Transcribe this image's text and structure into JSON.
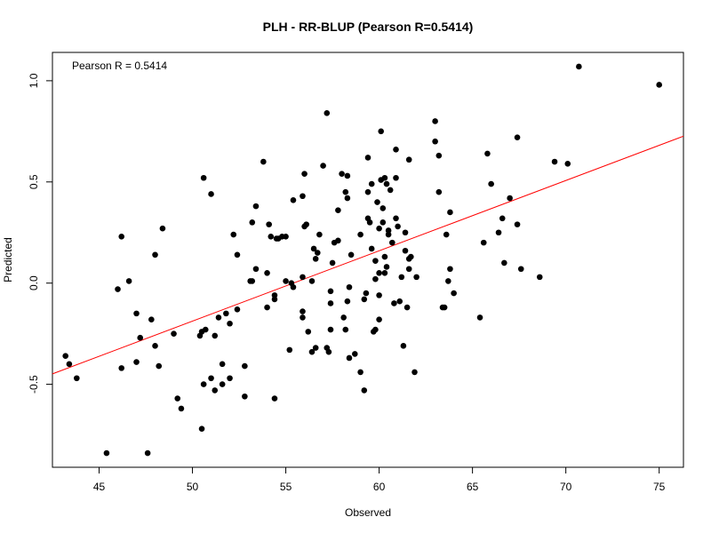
{
  "chart_data": {
    "type": "scatter",
    "title": "PLH - RR-BLUP (Pearson R=0.5414)",
    "xlabel": "Observed",
    "ylabel": "Predicted",
    "annotation": "Pearson R = 0.5414",
    "xlim": [
      42.5,
      76.3
    ],
    "ylim": [
      -0.91,
      1.14
    ],
    "x_ticks": [
      45,
      50,
      55,
      60,
      65,
      70,
      75
    ],
    "y_ticks": [
      -0.5,
      0.0,
      0.5,
      1.0
    ],
    "y_tick_labels": [
      "-0.5",
      "0.0",
      "0.5",
      "1.0"
    ],
    "grid": false,
    "point_color": "#000000",
    "fit_line": {
      "slope": 0.03475,
      "intercept": -1.9254,
      "color": "#ff0000"
    },
    "points": [
      [
        43.2,
        -0.36
      ],
      [
        43.4,
        -0.4
      ],
      [
        43.8,
        -0.47
      ],
      [
        45.4,
        -0.84
      ],
      [
        46.0,
        -0.03
      ],
      [
        46.2,
        0.23
      ],
      [
        46.2,
        -0.42
      ],
      [
        46.6,
        0.01
      ],
      [
        47.0,
        -0.39
      ],
      [
        47.0,
        -0.15
      ],
      [
        47.2,
        -0.27
      ],
      [
        47.6,
        -0.84
      ],
      [
        47.8,
        -0.18
      ],
      [
        48.0,
        0.14
      ],
      [
        48.0,
        -0.31
      ],
      [
        48.2,
        -0.41
      ],
      [
        48.4,
        0.27
      ],
      [
        49.0,
        -0.25
      ],
      [
        49.2,
        -0.57
      ],
      [
        49.4,
        -0.62
      ],
      [
        50.4,
        -0.26
      ],
      [
        50.5,
        -0.72
      ],
      [
        50.5,
        -0.24
      ],
      [
        50.6,
        -0.5
      ],
      [
        50.6,
        0.52
      ],
      [
        50.7,
        -0.23
      ],
      [
        51.0,
        0.44
      ],
      [
        51.0,
        -0.47
      ],
      [
        51.2,
        -0.53
      ],
      [
        51.2,
        -0.26
      ],
      [
        51.4,
        -0.17
      ],
      [
        51.6,
        -0.4
      ],
      [
        51.6,
        -0.5
      ],
      [
        51.8,
        -0.15
      ],
      [
        52.0,
        -0.47
      ],
      [
        52.0,
        -0.2
      ],
      [
        52.2,
        0.24
      ],
      [
        52.4,
        0.14
      ],
      [
        52.4,
        -0.13
      ],
      [
        52.8,
        -0.41
      ],
      [
        52.8,
        -0.56
      ],
      [
        53.1,
        0.01
      ],
      [
        53.2,
        0.3
      ],
      [
        53.2,
        0.01
      ],
      [
        53.4,
        0.07
      ],
      [
        53.4,
        0.38
      ],
      [
        53.8,
        0.6
      ],
      [
        54.0,
        0.05
      ],
      [
        54.0,
        -0.12
      ],
      [
        54.1,
        0.29
      ],
      [
        54.2,
        0.23
      ],
      [
        54.4,
        -0.06
      ],
      [
        54.4,
        -0.08
      ],
      [
        54.4,
        -0.57
      ],
      [
        54.5,
        0.22
      ],
      [
        54.6,
        0.22
      ],
      [
        54.8,
        0.23
      ],
      [
        55.0,
        0.23
      ],
      [
        55.0,
        0.01
      ],
      [
        55.2,
        -0.33
      ],
      [
        55.3,
        0.0
      ],
      [
        55.4,
        -0.02
      ],
      [
        55.4,
        0.41
      ],
      [
        55.9,
        0.03
      ],
      [
        55.9,
        -0.14
      ],
      [
        55.9,
        -0.17
      ],
      [
        55.9,
        0.43
      ],
      [
        56.0,
        0.54
      ],
      [
        56.0,
        0.28
      ],
      [
        56.1,
        0.29
      ],
      [
        56.2,
        -0.24
      ],
      [
        56.4,
        0.01
      ],
      [
        56.4,
        -0.34
      ],
      [
        56.5,
        0.17
      ],
      [
        56.6,
        -0.32
      ],
      [
        56.6,
        0.12
      ],
      [
        56.7,
        0.15
      ],
      [
        56.8,
        0.24
      ],
      [
        57.0,
        0.58
      ],
      [
        57.2,
        0.84
      ],
      [
        57.2,
        -0.32
      ],
      [
        57.3,
        -0.34
      ],
      [
        57.4,
        -0.04
      ],
      [
        57.4,
        -0.1
      ],
      [
        57.4,
        -0.23
      ],
      [
        57.5,
        0.1
      ],
      [
        57.6,
        0.2
      ],
      [
        57.8,
        0.36
      ],
      [
        57.8,
        0.21
      ],
      [
        58.0,
        0.54
      ],
      [
        58.1,
        -0.17
      ],
      [
        58.2,
        0.45
      ],
      [
        58.2,
        -0.23
      ],
      [
        58.3,
        0.53
      ],
      [
        58.3,
        0.42
      ],
      [
        58.3,
        -0.09
      ],
      [
        58.4,
        -0.02
      ],
      [
        58.4,
        -0.37
      ],
      [
        58.5,
        0.14
      ],
      [
        58.7,
        -0.35
      ],
      [
        59.0,
        -0.44
      ],
      [
        59.0,
        0.24
      ],
      [
        59.2,
        -0.53
      ],
      [
        59.2,
        -0.08
      ],
      [
        59.3,
        -0.05
      ],
      [
        59.4,
        0.32
      ],
      [
        59.4,
        0.62
      ],
      [
        59.4,
        0.45
      ],
      [
        59.5,
        0.3
      ],
      [
        59.6,
        0.17
      ],
      [
        59.6,
        0.49
      ],
      [
        59.7,
        -0.24
      ],
      [
        59.8,
        -0.23
      ],
      [
        59.8,
        0.11
      ],
      [
        59.8,
        0.02
      ],
      [
        59.9,
        0.4
      ],
      [
        60.0,
        0.27
      ],
      [
        60.0,
        -0.06
      ],
      [
        60.0,
        -0.18
      ],
      [
        60.0,
        0.05
      ],
      [
        60.1,
        0.75
      ],
      [
        60.1,
        0.51
      ],
      [
        60.2,
        0.37
      ],
      [
        60.2,
        0.3
      ],
      [
        60.3,
        0.52
      ],
      [
        60.3,
        0.05
      ],
      [
        60.3,
        0.13
      ],
      [
        60.4,
        0.49
      ],
      [
        60.4,
        0.08
      ],
      [
        60.5,
        0.26
      ],
      [
        60.5,
        0.24
      ],
      [
        60.6,
        0.46
      ],
      [
        60.7,
        0.2
      ],
      [
        60.8,
        -0.1
      ],
      [
        60.9,
        0.52
      ],
      [
        60.9,
        0.66
      ],
      [
        60.9,
        0.32
      ],
      [
        61.0,
        0.28
      ],
      [
        61.1,
        -0.09
      ],
      [
        61.2,
        0.03
      ],
      [
        61.3,
        -0.31
      ],
      [
        61.4,
        0.25
      ],
      [
        61.4,
        0.16
      ],
      [
        61.5,
        -0.12
      ],
      [
        61.6,
        0.07
      ],
      [
        61.6,
        0.12
      ],
      [
        61.6,
        0.61
      ],
      [
        61.7,
        0.13
      ],
      [
        61.9,
        -0.44
      ],
      [
        62.0,
        0.03
      ],
      [
        63.0,
        0.8
      ],
      [
        63.0,
        0.7
      ],
      [
        63.2,
        0.45
      ],
      [
        63.2,
        0.63
      ],
      [
        63.4,
        -0.12
      ],
      [
        63.5,
        -0.12
      ],
      [
        63.6,
        0.24
      ],
      [
        63.7,
        0.01
      ],
      [
        63.8,
        0.07
      ],
      [
        63.8,
        0.35
      ],
      [
        64.0,
        -0.05
      ],
      [
        65.4,
        -0.17
      ],
      [
        65.6,
        0.2
      ],
      [
        65.8,
        0.64
      ],
      [
        66.0,
        0.49
      ],
      [
        66.4,
        0.25
      ],
      [
        66.6,
        0.32
      ],
      [
        66.7,
        0.1
      ],
      [
        67.0,
        0.42
      ],
      [
        67.4,
        0.72
      ],
      [
        67.4,
        0.29
      ],
      [
        67.6,
        0.07
      ],
      [
        68.6,
        0.03
      ],
      [
        69.4,
        0.6
      ],
      [
        70.1,
        0.59
      ],
      [
        70.7,
        1.07
      ],
      [
        75.0,
        0.98
      ]
    ]
  }
}
